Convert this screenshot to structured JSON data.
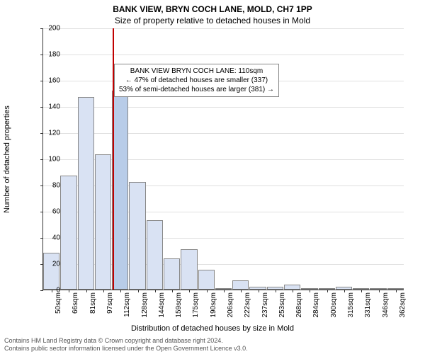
{
  "title": "BANK VIEW, BRYN COCH LANE, MOLD, CH7 1PP",
  "subtitle": "Size of property relative to detached houses in Mold",
  "ylabel": "Number of detached properties",
  "xlabel": "Distribution of detached houses by size in Mold",
  "chart": {
    "type": "histogram",
    "ylim": [
      0,
      200
    ],
    "ytick_step": 20,
    "bar_fill": "#d9e2f3",
    "highlight_fill": "#b8cce8",
    "bar_border": "#888888",
    "marker_color": "#c00000",
    "grid_color": "#e0e0e0",
    "axis_color": "#333333",
    "background_color": "#ffffff",
    "categories": [
      "50sqm",
      "66sqm",
      "81sqm",
      "97sqm",
      "112sqm",
      "128sqm",
      "144sqm",
      "159sqm",
      "175sqm",
      "190sqm",
      "206sqm",
      "222sqm",
      "237sqm",
      "253sqm",
      "268sqm",
      "284sqm",
      "300sqm",
      "315sqm",
      "331sqm",
      "346sqm",
      "362sqm"
    ],
    "values": [
      28,
      87,
      147,
      103,
      152,
      82,
      53,
      24,
      31,
      15,
      1,
      7,
      2,
      2,
      4,
      1,
      0,
      2,
      0,
      0,
      1
    ],
    "highlight_index": 4,
    "marker_value": 110,
    "marker_range": [
      50,
      362
    ],
    "title_fontsize": 12,
    "label_fontsize": 11,
    "tick_fontsize": 10
  },
  "annotation": {
    "line1": "BANK VIEW BRYN COCH LANE: 110sqm",
    "line2": "← 47% of detached houses are smaller (337)",
    "line3": "53% of semi-detached houses are larger (381) →"
  },
  "footer": {
    "line1": "Contains HM Land Registry data © Crown copyright and database right 2024.",
    "line2": "Contains public sector information licensed under the Open Government Licence v3.0."
  }
}
